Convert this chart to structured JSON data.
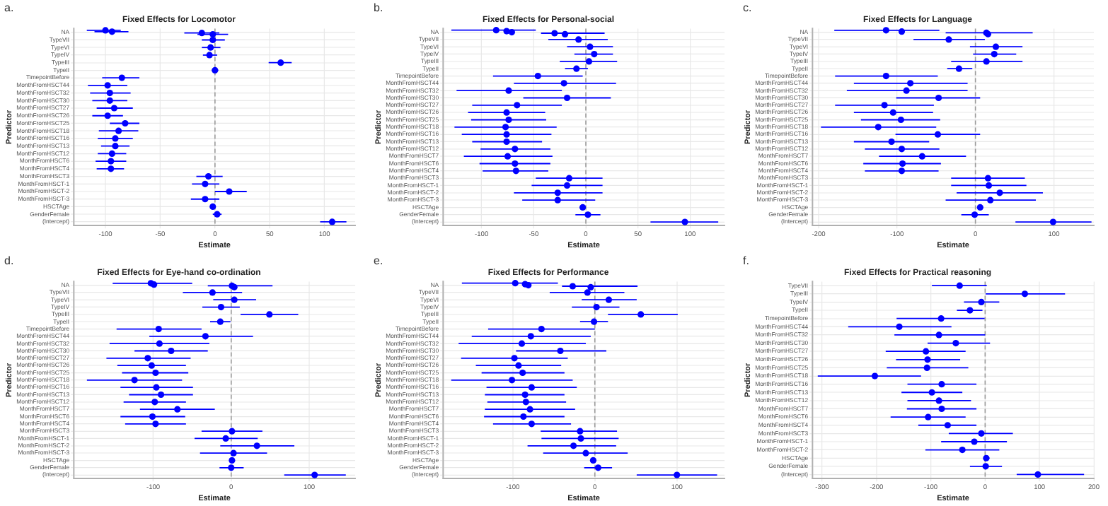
{
  "chart_data": [
    {
      "type": "scatter",
      "orientation": "horizontal",
      "title": "Fixed Effects for Locomotor",
      "xlabel": "Estimate",
      "ylabel": "Predictor",
      "annotations": [
        "a."
      ],
      "grid": true,
      "legend": false,
      "marker": "circle",
      "xlim": [
        -129,
        128
      ],
      "xticks": [
        -100,
        -50,
        0,
        50,
        100
      ],
      "ref_lines": [
        {
          "axis": "x",
          "value": 0,
          "line_style": "dashed"
        }
      ],
      "categories": [
        "NA",
        "TypeVII",
        "TypeVI",
        "TypeIV",
        "TypeIII",
        "TypeII",
        "TimepointBefore",
        "MonthFromHSCT44",
        "MonthFromHSCT32",
        "MonthFromHSCT30",
        "MonthFromHSCT27",
        "MonthFromHSCT26",
        "MonthFromHSCT25",
        "MonthFromHSCT18",
        "MonthFromHSCT16",
        "MonthFromHSCT13",
        "MonthFromHSCT12",
        "MonthFromHSCT6",
        "MonthFromHSCT4",
        "MonthFromHSCT3",
        "MonthFromHSCT-1",
        "MonthFromHSCT-2",
        "MonthFromHSCT-3",
        "HSCTAge",
        "GenderFemale",
        "(Intercept)"
      ],
      "series": [
        {
          "color": "#0000ff",
          "values": [
            -100,
            -2,
            -4,
            -5,
            60,
            0,
            -85,
            -98,
            -96,
            -96,
            -92,
            -98,
            -82,
            -88,
            -91,
            -91,
            -94,
            -95,
            -95,
            -6,
            -9,
            13,
            -9,
            -2,
            2,
            107
          ],
          "errors": [
            [
              -117,
              -86
            ],
            [
              -12,
              9
            ],
            [
              -12,
              5
            ],
            [
              -11,
              2
            ],
            [
              49,
              70
            ],
            [
              -3,
              3
            ],
            [
              -103,
              -69
            ],
            [
              -116,
              -80
            ],
            [
              -114,
              -77
            ],
            [
              -112,
              -80
            ],
            [
              -108,
              -75
            ],
            [
              -112,
              -84
            ],
            [
              -96,
              -69
            ],
            [
              -106,
              -70
            ],
            [
              -107,
              -75
            ],
            [
              -104,
              -78
            ],
            [
              -107,
              -81
            ],
            [
              -109,
              -81
            ],
            [
              -108,
              -83
            ],
            [
              -17,
              7
            ],
            [
              -21,
              4
            ],
            [
              0,
              29
            ],
            [
              -22,
              4
            ],
            [
              -4,
              0
            ],
            [
              -2,
              6
            ],
            [
              96,
              120
            ]
          ]
        },
        {
          "color": "#0000ff",
          "values": [
            -94,
            null,
            null,
            null,
            null,
            null,
            null,
            null,
            null,
            null,
            null,
            null,
            null,
            null,
            null,
            null,
            null,
            null,
            null,
            null,
            null,
            null,
            null,
            null,
            null,
            null
          ],
          "errors": [
            [
              -110,
              -79
            ],
            null,
            null,
            null,
            null,
            null,
            null,
            null,
            null,
            null,
            null,
            null,
            null,
            null,
            null,
            null,
            null,
            null,
            null,
            null,
            null,
            null,
            null,
            null,
            null,
            null
          ]
        },
        {
          "color": "#0000ff",
          "values": [
            -12,
            null,
            null,
            null,
            null,
            null,
            null,
            null,
            null,
            null,
            null,
            null,
            null,
            null,
            null,
            null,
            null,
            null,
            null,
            null,
            null,
            null,
            null,
            null,
            null,
            null
          ],
          "errors": [
            [
              -28,
              4
            ],
            null,
            null,
            null,
            null,
            null,
            null,
            null,
            null,
            null,
            null,
            null,
            null,
            null,
            null,
            null,
            null,
            null,
            null,
            null,
            null,
            null,
            null,
            null,
            null,
            null
          ]
        },
        {
          "color": "#0000ff",
          "values": [
            -2,
            null,
            null,
            null,
            null,
            null,
            null,
            null,
            null,
            null,
            null,
            null,
            null,
            null,
            null,
            null,
            null,
            null,
            null,
            null,
            null,
            null,
            null,
            null,
            null,
            null
          ],
          "errors": [
            [
              -16,
              12
            ],
            null,
            null,
            null,
            null,
            null,
            null,
            null,
            null,
            null,
            null,
            null,
            null,
            null,
            null,
            null,
            null,
            null,
            null,
            null,
            null,
            null,
            null,
            null,
            null,
            null
          ]
        }
      ]
    },
    {
      "type": "scatter",
      "orientation": "horizontal",
      "title": "Fixed Effects for Personal-social",
      "xlabel": "Estimate",
      "ylabel": "Predictor",
      "annotations": [
        "b."
      ],
      "grid": true,
      "legend": false,
      "marker": "circle",
      "xlim": [
        -137,
        133
      ],
      "xticks": [
        -100,
        -50,
        0,
        50,
        100
      ],
      "ref_lines": [
        {
          "axis": "x",
          "value": 0,
          "line_style": "dashed"
        }
      ],
      "categories": [
        "NA",
        "TypeVII",
        "TypeVI",
        "TypeIV",
        "TypeIII",
        "TypeII",
        "TimepointBefore",
        "MonthFromHSCT44",
        "MonthFromHSCT32",
        "MonthFromHSCT30",
        "MonthFromHSCT27",
        "MonthFromHSCT26",
        "MonthFromHSCT25",
        "MonthFromHSCT18",
        "MonthFromHSCT16",
        "MonthFromHSCT13",
        "MonthFromHSCT12",
        "MonthFromHSCT7",
        "MonthFromHSCT6",
        "MonthFromHSCT4",
        "MonthFromHSCT3",
        "MonthFromHSCT-1",
        "MonthFromHSCT-2",
        "MonthFromHSCT-3",
        "HSCTAge",
        "GenderFemale",
        "(Intercept)"
      ],
      "series": [
        {
          "color": "#0000ff",
          "values": [
            -86,
            -7,
            4,
            8,
            3,
            -9,
            -46,
            -21,
            -74,
            -18,
            -66,
            -76,
            -74,
            -77,
            -76,
            -76,
            -68,
            -75,
            -68,
            -67,
            -16,
            -18,
            -27,
            -27,
            -3,
            2,
            95
          ],
          "errors": [
            [
              -129,
              -48
            ],
            [
              -36,
              21
            ],
            [
              -18,
              26
            ],
            [
              -11,
              26
            ],
            [
              -25,
              30
            ],
            [
              -20,
              2
            ],
            [
              -89,
              -3
            ],
            [
              -69,
              29
            ],
            [
              -124,
              -23
            ],
            [
              -60,
              24
            ],
            [
              -109,
              -23
            ],
            [
              -113,
              -39
            ],
            [
              -110,
              -38
            ],
            [
              -126,
              -28
            ],
            [
              -119,
              -33
            ],
            [
              -109,
              -42
            ],
            [
              -101,
              -34
            ],
            [
              -117,
              -32
            ],
            [
              -102,
              -34
            ],
            [
              -99,
              -36
            ],
            [
              -48,
              16
            ],
            [
              -52,
              16
            ],
            [
              -69,
              16
            ],
            [
              -61,
              9
            ],
            [
              -6,
              0
            ],
            [
              -10,
              14
            ],
            [
              62,
              127
            ]
          ]
        },
        {
          "color": "#0000ff",
          "values": [
            -76,
            null,
            null,
            null,
            null,
            null,
            null,
            null,
            null,
            null,
            null,
            null,
            null,
            null,
            null,
            null,
            null,
            null,
            null,
            null,
            null,
            null,
            null,
            null,
            null,
            null,
            null
          ],
          "errors": [
            null,
            null,
            null,
            null,
            null,
            null,
            null,
            null,
            null,
            null,
            null,
            null,
            null,
            null,
            null,
            null,
            null,
            null,
            null,
            null,
            null,
            null,
            null,
            null,
            null,
            null,
            null
          ]
        },
        {
          "color": "#0000ff",
          "values": [
            -71,
            null,
            null,
            null,
            null,
            null,
            null,
            null,
            null,
            null,
            null,
            null,
            null,
            null,
            null,
            null,
            null,
            null,
            null,
            null,
            null,
            null,
            null,
            null,
            null,
            null,
            null
          ],
          "errors": [
            null,
            null,
            null,
            null,
            null,
            null,
            null,
            null,
            null,
            null,
            null,
            null,
            null,
            null,
            null,
            null,
            null,
            null,
            null,
            null,
            null,
            null,
            null,
            null,
            null,
            null,
            null
          ]
        },
        {
          "color": "#0000ff",
          "values": [
            -30,
            null,
            null,
            null,
            null,
            null,
            null,
            null,
            null,
            null,
            null,
            null,
            null,
            null,
            null,
            null,
            null,
            null,
            null,
            null,
            null,
            null,
            null,
            null,
            null,
            null,
            null
          ],
          "errors": [
            [
              -43,
              18
            ],
            null,
            null,
            null,
            null,
            null,
            null,
            null,
            null,
            null,
            null,
            null,
            null,
            null,
            null,
            null,
            null,
            null,
            null,
            null,
            null,
            null,
            null,
            null,
            null,
            null,
            null
          ]
        },
        {
          "color": "#0000ff",
          "values": [
            -20,
            null,
            null,
            null,
            null,
            null,
            null,
            null,
            null,
            null,
            null,
            null,
            null,
            null,
            null,
            null,
            null,
            null,
            null,
            null,
            null,
            null,
            null,
            null,
            null,
            null,
            null
          ],
          "errors": [
            null,
            null,
            null,
            null,
            null,
            null,
            null,
            null,
            null,
            null,
            null,
            null,
            null,
            null,
            null,
            null,
            null,
            null,
            null,
            null,
            null,
            null,
            null,
            null,
            null,
            null,
            null
          ]
        }
      ]
    },
    {
      "type": "scatter",
      "orientation": "horizontal",
      "title": "Fixed Effects for Language",
      "xlabel": "Estimate",
      "ylabel": "Predictor",
      "annotations": [
        "c."
      ],
      "grid": true,
      "legend": false,
      "marker": "circle",
      "xlim": [
        -208,
        151
      ],
      "xticks": [
        -200,
        -100,
        0,
        100
      ],
      "ref_lines": [
        {
          "axis": "x",
          "value": 0,
          "line_style": "dashed"
        }
      ],
      "categories": [
        "NA",
        "TypeVII",
        "TypeVI",
        "TypeIV",
        "TypeIII",
        "TypeII",
        "TimepointBefore",
        "MonthFromHSCT44",
        "MonthFromHSCT32",
        "MonthFromHSCT30",
        "MonthFromHSCT27",
        "MonthFromHSCT26",
        "MonthFromHSCT25",
        "MonthFromHSCT18",
        "MonthFromHSCT16",
        "MonthFromHSCT13",
        "MonthFromHSCT12",
        "MonthFromHSCT7",
        "MonthFromHSCT6",
        "MonthFromHSCT4",
        "MonthFromHSCT3",
        "MonthFromHSCT-1",
        "MonthFromHSCT-2",
        "MonthFromHSCT-3",
        "HSCTAge",
        "GenderFemale",
        "(Intercept)"
      ],
      "series": [
        {
          "color": "#0000ff",
          "values": [
            -114,
            -34,
            26,
            24,
            14,
            -21,
            -114,
            -83,
            -88,
            -47,
            -116,
            -105,
            -95,
            -124,
            -48,
            -107,
            -94,
            -68,
            -93,
            -94,
            16,
            17,
            31,
            19,
            6,
            -1,
            99
          ],
          "errors": [
            [
              -180,
              -46
            ],
            [
              -79,
              12
            ],
            [
              -7,
              60
            ],
            [
              -3,
              52
            ],
            [
              -31,
              60
            ],
            [
              -36,
              -4
            ],
            [
              -179,
              -48
            ],
            [
              -155,
              -10
            ],
            [
              -164,
              -10
            ],
            [
              -101,
              6
            ],
            [
              -179,
              -53
            ],
            [
              -155,
              -54
            ],
            [
              -146,
              -45
            ],
            [
              -197,
              -50
            ],
            [
              -102,
              6
            ],
            [
              -155,
              -59
            ],
            [
              -141,
              -46
            ],
            [
              -123,
              -12
            ],
            [
              -143,
              -44
            ],
            [
              -141,
              -47
            ],
            [
              -31,
              63
            ],
            [
              -31,
              65
            ],
            [
              -24,
              86
            ],
            [
              -38,
              77
            ],
            [
              2,
              10
            ],
            [
              -18,
              17
            ],
            [
              51,
              148
            ]
          ]
        },
        {
          "color": "#0000ff",
          "values": [
            -94,
            null,
            null,
            null,
            null,
            null,
            null,
            null,
            null,
            null,
            null,
            null,
            null,
            null,
            null,
            null,
            null,
            null,
            null,
            null,
            null,
            null,
            null,
            null,
            null,
            null,
            null
          ],
          "errors": [
            null,
            null,
            null,
            null,
            null,
            null,
            null,
            null,
            null,
            null,
            null,
            null,
            null,
            null,
            null,
            null,
            null,
            null,
            null,
            null,
            null,
            null,
            null,
            null,
            null,
            null,
            null
          ]
        },
        {
          "color": "#0000ff",
          "values": [
            14,
            null,
            null,
            null,
            null,
            null,
            null,
            null,
            null,
            null,
            null,
            null,
            null,
            null,
            null,
            null,
            null,
            null,
            null,
            null,
            null,
            null,
            null,
            null,
            null,
            null,
            null
          ],
          "errors": [
            [
              -38,
              73
            ],
            null,
            null,
            null,
            null,
            null,
            null,
            null,
            null,
            null,
            null,
            null,
            null,
            null,
            null,
            null,
            null,
            null,
            null,
            null,
            null,
            null,
            null,
            null,
            null,
            null,
            null
          ]
        },
        {
          "color": "#0000ff",
          "values": [
            16,
            null,
            null,
            null,
            null,
            null,
            null,
            null,
            null,
            null,
            null,
            null,
            null,
            null,
            null,
            null,
            null,
            null,
            null,
            null,
            null,
            null,
            null,
            null,
            null,
            null,
            null
          ],
          "errors": [
            null,
            null,
            null,
            null,
            null,
            null,
            null,
            null,
            null,
            null,
            null,
            null,
            null,
            null,
            null,
            null,
            null,
            null,
            null,
            null,
            null,
            null,
            null,
            null,
            null,
            null,
            null
          ]
        }
      ]
    },
    {
      "type": "scatter",
      "orientation": "horizontal",
      "title": "Fixed Effects for Eye-hand co-ordination",
      "xlabel": "Estimate",
      "ylabel": "Predictor",
      "annotations": [
        "d."
      ],
      "grid": true,
      "legend": false,
      "marker": "circle",
      "xlim": [
        -202,
        159
      ],
      "xticks": [
        -100,
        0,
        100
      ],
      "ref_lines": [
        {
          "axis": "x",
          "value": 0,
          "line_style": "dashed"
        }
      ],
      "categories": [
        "NA",
        "TypeVII",
        "TypeVI",
        "TypeIV",
        "TypeIII",
        "TypeII",
        "TimepointBefore",
        "MonthFromHSCT44",
        "MonthFromHSCT32",
        "MonthFromHSCT30",
        "MonthFromHSCT27",
        "MonthFromHSCT26",
        "MonthFromHSCT25",
        "MonthFromHSCT18",
        "MonthFromHSCT16",
        "MonthFromHSCT13",
        "MonthFromHSCT12",
        "MonthFromHSCT7",
        "MonthFromHSCT6",
        "MonthFromHSCT4",
        "MonthFromHSCT3",
        "MonthFromHSCT-1",
        "MonthFromHSCT-2",
        "MonthFromHSCT-3",
        "HSCTAge",
        "GenderFemale",
        "(Intercept)"
      ],
      "series": [
        {
          "color": "#0000ff",
          "values": [
            -103,
            -24,
            4,
            -13,
            49,
            -14,
            -93,
            -33,
            -92,
            -77,
            -107,
            -102,
            -97,
            -124,
            -96,
            -90,
            -98,
            -69,
            -101,
            -97,
            1,
            -7,
            33,
            3,
            1,
            0,
            107
          ],
          "errors": [
            [
              -152,
              -50
            ],
            [
              -62,
              14
            ],
            [
              -23,
              32
            ],
            [
              -37,
              11
            ],
            [
              12,
              86
            ],
            [
              -27,
              -1
            ],
            [
              -147,
              -38
            ],
            [
              -105,
              28
            ],
            [
              -156,
              -28
            ],
            [
              -124,
              -30
            ],
            [
              -160,
              -52
            ],
            [
              -146,
              -58
            ],
            [
              -140,
              -55
            ],
            [
              -185,
              -63
            ],
            [
              -142,
              -49
            ],
            [
              -131,
              -49
            ],
            [
              -138,
              -58
            ],
            [
              -117,
              -21
            ],
            [
              -142,
              -59
            ],
            [
              -136,
              -58
            ],
            [
              -38,
              40
            ],
            [
              -47,
              34
            ],
            [
              -14,
              81
            ],
            [
              -40,
              46
            ],
            [
              -1,
              3
            ],
            [
              -15,
              16
            ],
            [
              68,
              147
            ]
          ]
        },
        {
          "color": "#0000ff",
          "values": [
            -99,
            null,
            null,
            null,
            null,
            null,
            null,
            null,
            null,
            null,
            null,
            null,
            null,
            null,
            null,
            null,
            null,
            null,
            null,
            null,
            null,
            null,
            null,
            null,
            null,
            null,
            null
          ],
          "errors": [
            null,
            null,
            null,
            null,
            null,
            null,
            null,
            null,
            null,
            null,
            null,
            null,
            null,
            null,
            null,
            null,
            null,
            null,
            null,
            null,
            null,
            null,
            null,
            null,
            null,
            null,
            null
          ]
        },
        {
          "color": "#0000ff",
          "values": [
            1,
            null,
            null,
            null,
            null,
            null,
            null,
            null,
            null,
            null,
            null,
            null,
            null,
            null,
            null,
            null,
            null,
            null,
            null,
            null,
            null,
            null,
            null,
            null,
            null,
            null,
            null
          ],
          "errors": [
            [
              -30,
              53
            ],
            null,
            null,
            null,
            null,
            null,
            null,
            null,
            null,
            null,
            null,
            null,
            null,
            null,
            null,
            null,
            null,
            null,
            null,
            null,
            null,
            null,
            null,
            null,
            null,
            null,
            null
          ]
        },
        {
          "color": "#0000ff",
          "values": [
            4,
            null,
            null,
            null,
            null,
            null,
            null,
            null,
            null,
            null,
            null,
            null,
            null,
            null,
            null,
            null,
            null,
            null,
            null,
            null,
            null,
            null,
            null,
            null,
            null,
            null,
            null
          ],
          "errors": [
            null,
            null,
            null,
            null,
            null,
            null,
            null,
            null,
            null,
            null,
            null,
            null,
            null,
            null,
            null,
            null,
            null,
            null,
            null,
            null,
            null,
            null,
            null,
            null,
            null,
            null,
            null
          ]
        }
      ]
    },
    {
      "type": "scatter",
      "orientation": "horizontal",
      "title": "Fixed Effects for Performance",
      "xlabel": "Estimate",
      "ylabel": "Predictor",
      "annotations": [
        "e."
      ],
      "grid": true,
      "legend": false,
      "marker": "circle",
      "xlim": [
        -185,
        158
      ],
      "xticks": [
        -100,
        0,
        100
      ],
      "ref_lines": [
        {
          "axis": "x",
          "value": 0,
          "line_style": "dashed"
        }
      ],
      "categories": [
        "NA",
        "TypeVII",
        "TypeVI",
        "TypeIV",
        "TypeIII",
        "TypeII",
        "TimepointBefore",
        "MonthFromHSCT44",
        "MonthFromHSCT32",
        "MonthFromHSCT30",
        "MonthFromHSCT27",
        "MonthFromHSCT26",
        "MonthFromHSCT25",
        "MonthFromHSCT18",
        "MonthFromHSCT16",
        "MonthFromHSCT13",
        "MonthFromHSCT12",
        "MonthFromHSCT7",
        "MonthFromHSCT6",
        "MonthFromHSCT4",
        "MonthFromHSCT3",
        "MonthFromHSCT-1",
        "MonthFromHSCT-2",
        "MonthFromHSCT-3",
        "HSCTAge",
        "GenderFemale",
        "(Intercept)"
      ],
      "series": [
        {
          "color": "#0000ff",
          "values": [
            -97,
            -9,
            17,
            2,
            56,
            -1,
            -65,
            -78,
            -89,
            -42,
            -98,
            -93,
            -88,
            -101,
            -77,
            -85,
            -84,
            -79,
            -87,
            -77,
            -18,
            -17,
            -26,
            -11,
            -2,
            4,
            100
          ],
          "errors": [
            [
              -162,
              -45
            ],
            [
              -55,
              36
            ],
            [
              -16,
              51
            ],
            [
              -28,
              30
            ],
            [
              16,
              101
            ],
            [
              -18,
              16
            ],
            [
              -130,
              0
            ],
            [
              -150,
              -5
            ],
            [
              -166,
              -11
            ],
            [
              -96,
              14
            ],
            [
              -163,
              -33
            ],
            [
              -145,
              -41
            ],
            [
              -138,
              -37
            ],
            [
              -175,
              -27
            ],
            [
              -132,
              -22
            ],
            [
              -134,
              -37
            ],
            [
              -131,
              -35
            ],
            [
              -134,
              -24
            ],
            [
              -135,
              -37
            ],
            [
              -124,
              -29
            ],
            [
              -66,
              27
            ],
            [
              -65,
              29
            ],
            [
              -82,
              26
            ],
            [
              -63,
              40
            ],
            [
              -5,
              2
            ],
            [
              -13,
              21
            ],
            [
              51,
              149
            ]
          ]
        },
        {
          "color": "#0000ff",
          "values": [
            -85,
            null,
            null,
            null,
            null,
            null,
            null,
            null,
            null,
            null,
            null,
            null,
            null,
            null,
            null,
            null,
            null,
            null,
            null,
            null,
            null,
            null,
            null,
            null,
            null,
            null,
            null
          ],
          "errors": [
            null,
            null,
            null,
            null,
            null,
            null,
            null,
            null,
            null,
            null,
            null,
            null,
            null,
            null,
            null,
            null,
            null,
            null,
            null,
            null,
            null,
            null,
            null,
            null,
            null,
            null,
            null
          ]
        },
        {
          "color": "#0000ff",
          "values": [
            -81,
            null,
            null,
            null,
            null,
            null,
            null,
            null,
            null,
            null,
            null,
            null,
            null,
            null,
            null,
            null,
            null,
            null,
            null,
            null,
            null,
            null,
            null,
            null,
            null,
            null,
            null
          ],
          "errors": [
            null,
            null,
            null,
            null,
            null,
            null,
            null,
            null,
            null,
            null,
            null,
            null,
            null,
            null,
            null,
            null,
            null,
            null,
            null,
            null,
            null,
            null,
            null,
            null,
            null,
            null,
            null
          ]
        },
        {
          "color": "#0000ff",
          "values": [
            -27,
            null,
            null,
            null,
            null,
            null,
            null,
            null,
            null,
            null,
            null,
            null,
            null,
            null,
            null,
            null,
            null,
            null,
            null,
            null,
            null,
            null,
            null,
            null,
            null,
            null,
            null
          ],
          "errors": [
            [
              -40,
              52
            ],
            null,
            null,
            null,
            null,
            null,
            null,
            null,
            null,
            null,
            null,
            null,
            null,
            null,
            null,
            null,
            null,
            null,
            null,
            null,
            null,
            null,
            null,
            null,
            null,
            null,
            null
          ]
        },
        {
          "color": "#0000ff",
          "values": [
            -5,
            null,
            null,
            null,
            null,
            null,
            null,
            null,
            null,
            null,
            null,
            null,
            null,
            null,
            null,
            null,
            null,
            null,
            null,
            null,
            null,
            null,
            null,
            null,
            null,
            null,
            null
          ],
          "errors": [
            null,
            null,
            null,
            null,
            null,
            null,
            null,
            null,
            null,
            null,
            null,
            null,
            null,
            null,
            null,
            null,
            null,
            null,
            null,
            null,
            null,
            null,
            null,
            null,
            null,
            null,
            null
          ]
        }
      ]
    },
    {
      "type": "scatter",
      "orientation": "horizontal",
      "title": "Fixed Effects for Practical reasoning",
      "xlabel": "Estimate",
      "ylabel": "Predictor",
      "annotations": [
        "f."
      ],
      "grid": true,
      "legend": false,
      "marker": "circle",
      "xlim": [
        -318,
        200
      ],
      "xticks": [
        -300,
        -200,
        -100,
        0,
        100,
        200
      ],
      "ref_lines": [
        {
          "axis": "x",
          "value": 0,
          "line_style": "dashed"
        }
      ],
      "categories": [
        "TypeVII",
        "TypeIII",
        "TypeIV",
        "TypeII",
        "TimepointBefore",
        "MonthFromHSCT44",
        "MonthFromHSCT32",
        "MonthFromHSCT30",
        "MonthFromHSCT27",
        "MonthFromHSCT26",
        "MonthFromHSCT25",
        "MonthFromHSCT18",
        "MonthFromHSCT16",
        "MonthFromHSCT13",
        "MonthFromHSCT12",
        "MonthFromHSCT7",
        "MonthFromHSCT6",
        "MonthFromHSCT4",
        "MonthFromHSCT3",
        "MonthFromHSCT-1",
        "MonthFromHSCT-2",
        "HSCTAge",
        "GenderFemale",
        "(Intercept)"
      ],
      "series": [
        {
          "color": "#0000ff",
          "values": [
            -47,
            73,
            -7,
            -28,
            -81,
            -158,
            -85,
            -54,
            -109,
            -106,
            -107,
            -203,
            -80,
            -98,
            -85,
            -80,
            -105,
            -69,
            -7,
            -20,
            -42,
            2,
            1,
            97
          ],
          "errors": [
            [
              -98,
              3
            ],
            [
              1,
              147
            ],
            [
              -39,
              26
            ],
            [
              -52,
              -5
            ],
            [
              -163,
              -1
            ],
            [
              -252,
              -62
            ],
            [
              -167,
              0
            ],
            [
              -106,
              9
            ],
            [
              -183,
              -36
            ],
            [
              -164,
              -46
            ],
            [
              -181,
              -31
            ],
            [
              -308,
              -118
            ],
            [
              -143,
              -16
            ],
            [
              -154,
              -42
            ],
            [
              -143,
              -26
            ],
            [
              -144,
              -16
            ],
            [
              -174,
              -36
            ],
            [
              -123,
              -16
            ],
            [
              -67,
              51
            ],
            [
              -81,
              40
            ],
            [
              -110,
              26
            ],
            [
              -3,
              8
            ],
            [
              -28,
              31
            ],
            [
              58,
              182
            ]
          ]
        }
      ]
    }
  ]
}
